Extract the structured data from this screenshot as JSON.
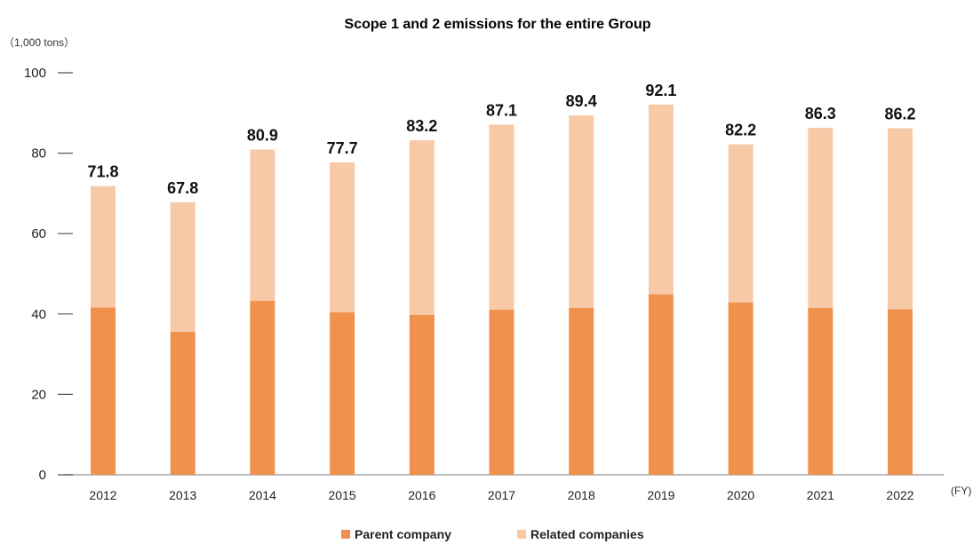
{
  "chart_data": {
    "type": "bar",
    "stacked": true,
    "title": "Scope 1 and 2 emissions for the entire Group",
    "unit_label": "（1,000 tons）",
    "x_unit_label": "(FY)",
    "categories": [
      "2012",
      "2013",
      "2014",
      "2015",
      "2016",
      "2017",
      "2018",
      "2019",
      "2020",
      "2021",
      "2022"
    ],
    "series": [
      {
        "name": "Parent company",
        "color": "#F0914E",
        "values": [
          41.6,
          35.6,
          43.3,
          40.4,
          39.8,
          41.1,
          41.5,
          44.9,
          42.9,
          41.5,
          41.2
        ]
      },
      {
        "name": "Related companies",
        "color": "#F8C9A7",
        "values": [
          30.2,
          32.2,
          37.6,
          37.3,
          43.4,
          46.0,
          47.9,
          47.2,
          39.3,
          44.8,
          45.0
        ]
      }
    ],
    "totals": [
      "71.8",
      "67.8",
      "80.9",
      "77.7",
      "83.2",
      "87.1",
      "89.4",
      "92.1",
      "82.2",
      "86.3",
      "86.2"
    ],
    "ylim": [
      0,
      100
    ],
    "yticks": [
      0,
      20,
      40,
      60,
      80,
      100
    ],
    "grid": false,
    "legend_position": "bottom"
  }
}
